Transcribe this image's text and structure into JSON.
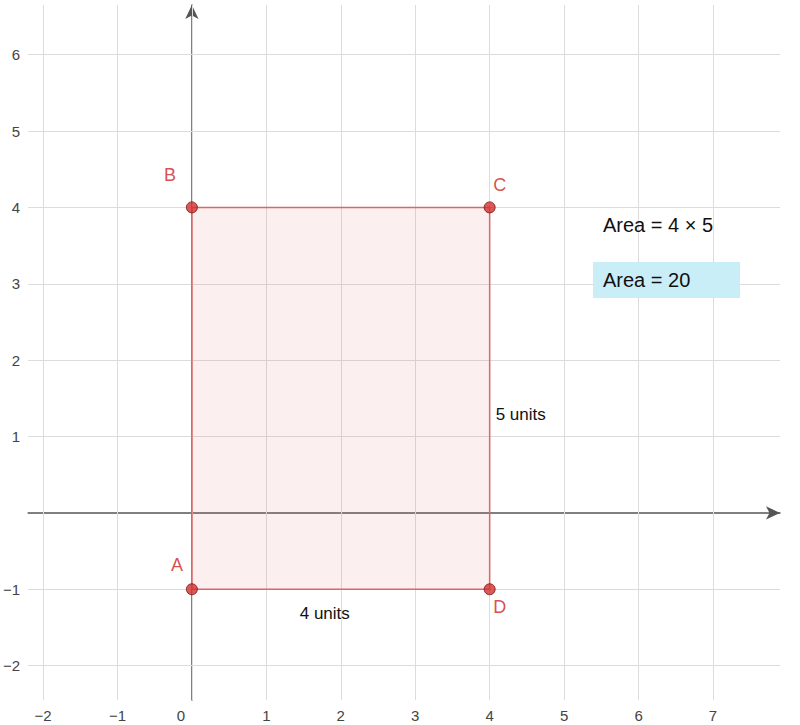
{
  "chart_data": {
    "type": "polygon",
    "points": [
      {
        "label": "A",
        "x": 0,
        "y": -1
      },
      {
        "label": "B",
        "x": 0,
        "y": 4
      },
      {
        "label": "C",
        "x": 4,
        "y": 4
      },
      {
        "label": "D",
        "x": 4,
        "y": -1
      }
    ],
    "side_labels": {
      "bottom": "4 units",
      "right": "5 units"
    },
    "annotations": [
      "Area = 4 × 5",
      "Area = 20"
    ],
    "color": "#e06666",
    "marker": "circle",
    "xlim": [
      -2.2,
      7.9
    ],
    "ylim": [
      -2.45,
      6.65
    ],
    "xticks": [
      {
        "value": -2,
        "label": "−2"
      },
      {
        "value": -1,
        "label": "−1"
      },
      0,
      1,
      2,
      3,
      4,
      5,
      6,
      7
    ],
    "yticks": [
      {
        "value": -2,
        "label": "−2"
      },
      {
        "value": -1,
        "label": "−1"
      },
      1,
      2,
      3,
      4,
      5,
      6
    ],
    "grid": true
  }
}
